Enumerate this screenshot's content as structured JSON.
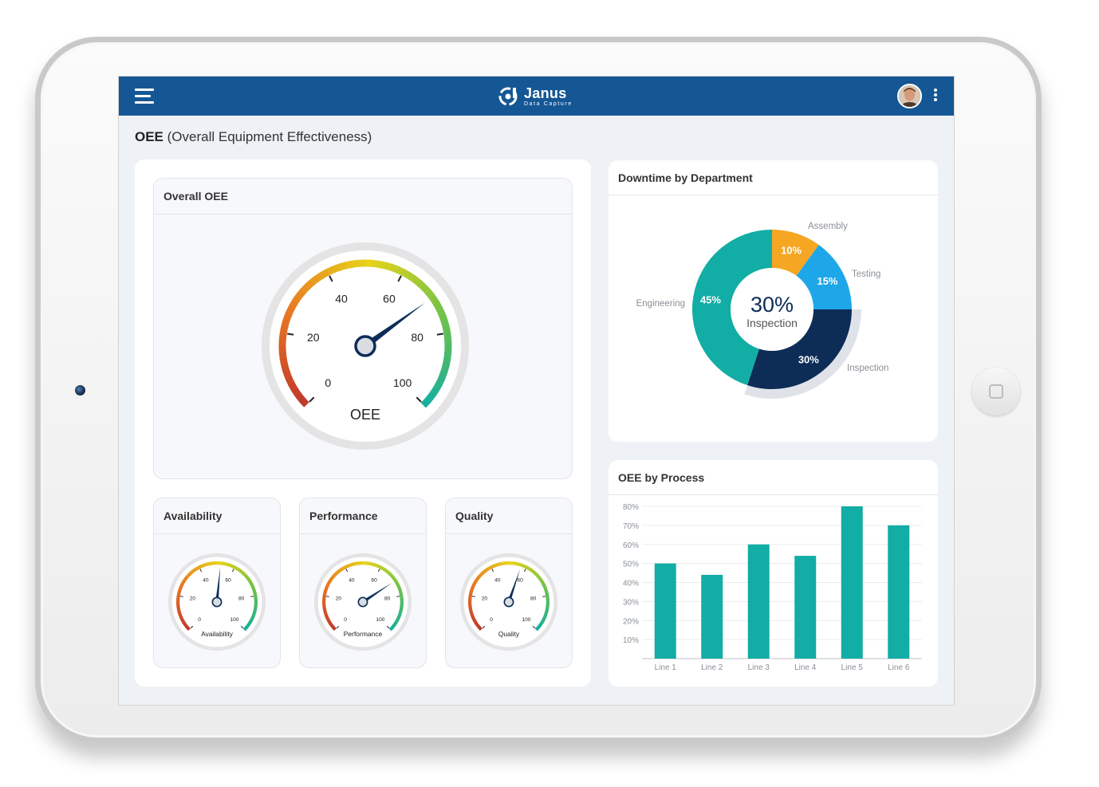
{
  "header": {
    "logo_name": "Janus",
    "logo_sub": "Data Capture",
    "menu_icon": "hamburger-icon",
    "more_icon": "kebab-menu-icon"
  },
  "page": {
    "title_bold": "OEE",
    "title_rest": "(Overall Equipment Effectiveness)"
  },
  "colors": {
    "header_bg": "#155795",
    "teal": "#12ada4",
    "orange": "#f5a623",
    "blue": "#1ea7e8",
    "navy": "#0d2d57"
  },
  "gauges": {
    "overall": {
      "title": "Overall OEE",
      "label": "OEE",
      "value": 70,
      "ticks": [
        "0",
        "20",
        "40",
        "60",
        "80",
        "100"
      ]
    },
    "availability": {
      "title": "Availability",
      "label": "Availability",
      "value": 52,
      "ticks": [
        "0",
        "20",
        "40",
        "60",
        "80",
        "100"
      ]
    },
    "performance": {
      "title": "Performance",
      "label": "Performance",
      "value": 71,
      "ticks": [
        "0",
        "20",
        "40",
        "60",
        "80",
        "100"
      ]
    },
    "quality": {
      "title": "Quality",
      "label": "Quality",
      "value": 57,
      "ticks": [
        "0",
        "20",
        "40",
        "60",
        "80",
        "100"
      ]
    }
  },
  "donut": {
    "title": "Downtime by Department",
    "center_value": "30%",
    "center_label": "Inspection",
    "slices": [
      {
        "name": "Assembly",
        "value": 10,
        "label": "10%",
        "color": "#f5a623"
      },
      {
        "name": "Testing",
        "value": 15,
        "label": "15%",
        "color": "#1ea7e8"
      },
      {
        "name": "Inspection",
        "value": 30,
        "label": "30%",
        "color": "#0d2d57"
      },
      {
        "name": "Engineering",
        "value": 45,
        "label": "45%",
        "color": "#12ada4"
      }
    ]
  },
  "chart_data": {
    "type": "bar",
    "title": "OEE by Process",
    "categories": [
      "Line 1",
      "Line 2",
      "Line 3",
      "Line 4",
      "Line 5",
      "Line 6"
    ],
    "values": [
      50,
      44,
      60,
      54,
      80,
      70
    ],
    "ylim": [
      0,
      80
    ],
    "yticks": [
      "10%",
      "20%",
      "30%",
      "40%",
      "50%",
      "60%",
      "70%",
      "80%"
    ],
    "grid": true,
    "color": "#12ada4"
  }
}
